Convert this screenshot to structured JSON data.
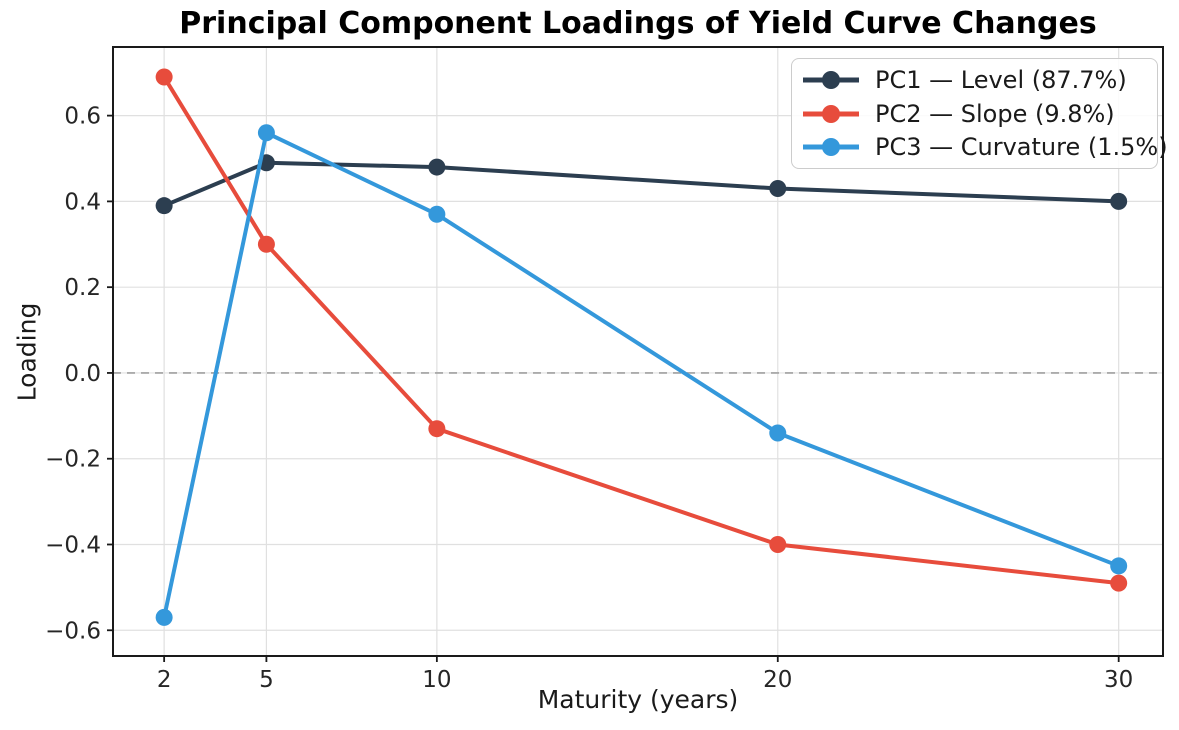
{
  "chart_data": {
    "type": "line",
    "title": "Principal Component Loadings of Yield Curve Changes",
    "xlabel": "Maturity (years)",
    "ylabel": "Loading",
    "x": [
      2,
      5,
      10,
      20,
      30
    ],
    "series": [
      {
        "name": "PC1 — Level (87.7%)",
        "color": "#2c3e50",
        "values": [
          0.39,
          0.49,
          0.48,
          0.43,
          0.4
        ]
      },
      {
        "name": "PC2 — Slope (9.8%)",
        "color": "#e74c3c",
        "values": [
          0.69,
          0.3,
          -0.13,
          -0.4,
          -0.49
        ]
      },
      {
        "name": "PC3 — Curvature (1.5%)",
        "color": "#3498db",
        "values": [
          -0.57,
          0.56,
          0.37,
          -0.14,
          -0.45
        ]
      }
    ],
    "xticks": [
      2,
      5,
      10,
      20,
      30
    ],
    "yticks": [
      -0.6,
      -0.4,
      -0.2,
      0.0,
      0.2,
      0.4,
      0.6
    ],
    "xlim": [
      0.5,
      31.3
    ],
    "ylim": [
      -0.66,
      0.76
    ],
    "grid": true,
    "zero_line": true,
    "legend_position": "upper right"
  },
  "colors": {
    "background": "#ffffff",
    "grid": "#e0e0e0",
    "zero_line": "#ababab",
    "spine": "#1a1a1a",
    "tick_label": "#262626",
    "title": "#000000"
  }
}
